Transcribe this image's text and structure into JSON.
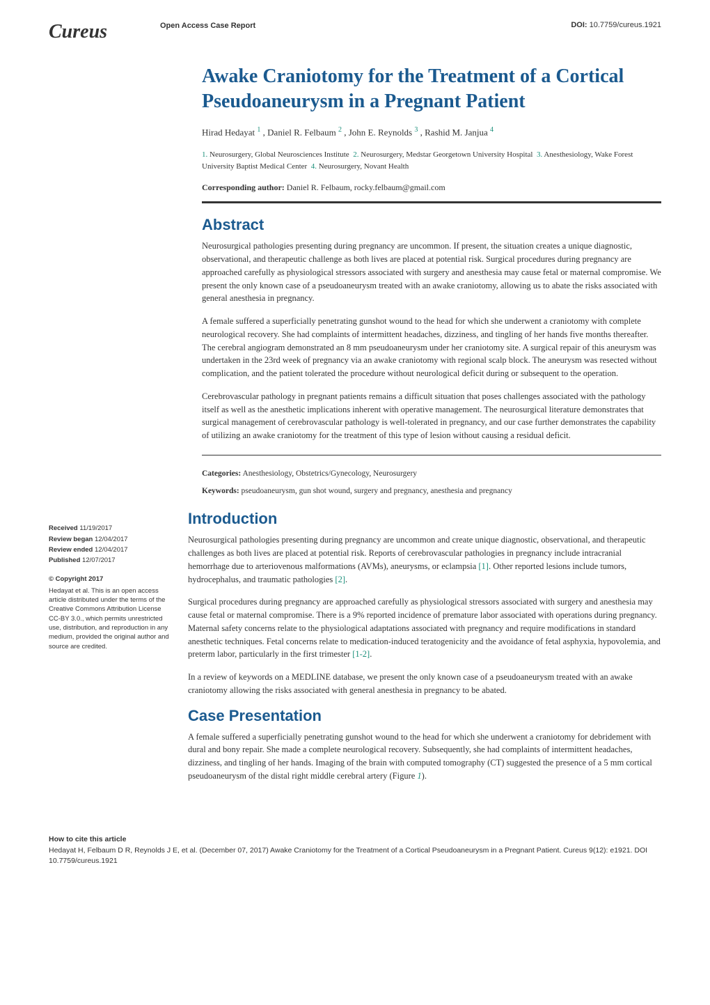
{
  "journal": "Cureus",
  "report_type": "Open Access Case Report",
  "doi_label": "DOI:",
  "doi": "10.7759/cureus.1921",
  "title": "Awake Craniotomy for the Treatment of a Cortical Pseudoaneurysm in a Pregnant Patient",
  "authors": [
    {
      "name": "Hirad Hedayat",
      "aff": "1"
    },
    {
      "name": "Daniel R. Felbaum",
      "aff": "2"
    },
    {
      "name": "John E. Reynolds",
      "aff": "3"
    },
    {
      "name": "Rashid M. Janjua",
      "aff": "4"
    }
  ],
  "affiliations": [
    {
      "num": "1.",
      "text": "Neurosurgery, Global Neurosciences Institute"
    },
    {
      "num": "2.",
      "text": "Neurosurgery, Medstar Georgetown University Hospital"
    },
    {
      "num": "3.",
      "text": "Anesthesiology, Wake Forest University Baptist Medical Center"
    },
    {
      "num": "4.",
      "text": "Neurosurgery, Novant Health"
    }
  ],
  "corresponding_label": "Corresponding author:",
  "corresponding": "Daniel R. Felbaum, rocky.felbaum@gmail.com",
  "abstract_heading": "Abstract",
  "abstract_p1": "Neurosurgical pathologies presenting during pregnancy are uncommon. If present, the situation creates a unique diagnostic, observational, and therapeutic challenge as both lives are placed at potential risk. Surgical procedures during pregnancy are approached carefully as physiological stressors associated with surgery and anesthesia may cause fetal or maternal compromise. We present the only known case of a pseudoaneurysm treated with an awake craniotomy, allowing us to abate the risks associated with general anesthesia in pregnancy.",
  "abstract_p2": "A female suffered a superficially penetrating gunshot wound to the head for which she underwent a craniotomy with complete neurological recovery. She had complaints of intermittent headaches, dizziness, and tingling of her hands five months thereafter. The cerebral angiogram demonstrated an 8 mm pseudoaneurysm under her craniotomy site. A surgical repair of this aneurysm was undertaken in the 23rd week of pregnancy via an awake craniotomy with regional scalp block. The aneurysm was resected without complication, and the patient tolerated the procedure without neurological deficit during or subsequent to the operation.",
  "abstract_p3": "Cerebrovascular pathology in pregnant patients remains a difficult situation that poses challenges associated with the pathology itself as well as the anesthetic implications inherent with operative management. The neurosurgical literature demonstrates that surgical management of cerebrovascular pathology is well-tolerated in pregnancy, and our case further demonstrates the capability of utilizing an awake craniotomy for the treatment of this type of lesion without causing a residual deficit.",
  "categories_label": "Categories:",
  "categories": "Anesthesiology, Obstetrics/Gynecology, Neurosurgery",
  "keywords_label": "Keywords:",
  "keywords": "pseudoaneurysm, gun shot wound, surgery and pregnancy, anesthesia and pregnancy",
  "intro_heading": "Introduction",
  "intro_p1_a": "Neurosurgical pathologies presenting during pregnancy are uncommon and create unique diagnostic, observational, and therapeutic challenges as both lives are placed at potential risk. Reports of cerebrovascular pathologies in pregnancy include intracranial hemorrhage due to arteriovenous malformations (AVMs), aneurysms, or eclampsia ",
  "intro_p1_ref1": "[1]",
  "intro_p1_b": ". Other reported lesions include tumors, hydrocephalus, and traumatic pathologies ",
  "intro_p1_ref2": "[2]",
  "intro_p1_c": ".",
  "intro_p2_a": "Surgical procedures during pregnancy are approached carefully as physiological stressors associated with surgery and anesthesia may cause fetal or maternal compromise. There is a 9% reported incidence of premature labor associated with operations during pregnancy. Maternal safety concerns relate to the physiological adaptations associated with pregnancy and require modifications in standard anesthetic techniques. Fetal concerns relate to medication-induced teratogenicity and the avoidance of fetal asphyxia, hypovolemia, and preterm labor, particularly in the first trimester ",
  "intro_p2_ref": "[1-2]",
  "intro_p2_b": ".",
  "intro_p3": "In a review of keywords on a MEDLINE database, we present the only known case of a pseudoaneurysm treated with an awake craniotomy allowing the risks associated with general anesthesia in pregnancy to be abated.",
  "case_heading": "Case Presentation",
  "case_p1_a": "A female suffered a superficially penetrating gunshot wound to the head for which she underwent a craniotomy for debridement with dural and bony repair. She made a complete neurological recovery. Subsequently, she had complaints of intermittent headaches, dizziness, and tingling of her hands. Imaging of the brain with computed tomography (CT) suggested the presence of a 5 mm cortical pseudoaneurysm of the distal right middle cerebral artery (Figure ",
  "case_p1_fig": "1",
  "case_p1_b": ").",
  "sidebar": {
    "received_label": "Received",
    "received": "11/19/2017",
    "began_label": "Review began",
    "began": "12/04/2017",
    "ended_label": "Review ended",
    "ended": "12/04/2017",
    "published_label": "Published",
    "published": "12/07/2017",
    "copyright_heading": "© Copyright 2017",
    "copyright_text": "Hedayat et al. This is an open access article distributed under the terms of the Creative Commons Attribution License CC-BY 3.0., which permits unrestricted use, distribution, and reproduction in any medium, provided the original author and source are credited."
  },
  "citation_label": "How to cite this article",
  "citation_text": "Hedayat H, Felbaum D R, Reynolds J E, et al. (December 07, 2017) Awake Craniotomy for the Treatment of a Cortical Pseudoaneurysm in a Pregnant Patient. Cureus 9(12): e1921. DOI 10.7759/cureus.1921"
}
